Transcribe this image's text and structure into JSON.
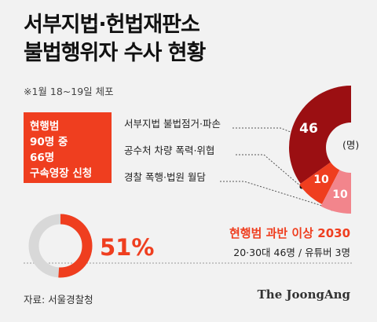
{
  "title_line1": "서부지법·헌법재판소",
  "title_line2": "불법행위자 수사 현황",
  "subtitle": "※1월 18~19일 체포",
  "box_lines": [
    "현행범",
    "90명 중",
    "66명",
    "구속영장 신청"
  ],
  "highlight_title": "현행범 과반 이상 2030",
  "highlight_detail": "20·30대 46명 / 유튜버 3명",
  "source": "자료: 서울경찰청",
  "brand": "The JoongAng",
  "colors": {
    "accent": "#ef3e1f",
    "dark_red": "#9b0f12",
    "pink": "#f2858c",
    "gray": "#d8d8d8"
  },
  "chart_data": [
    {
      "type": "pie",
      "unit": "(명)",
      "categories": [
        "서부지법 불법점거·파손",
        "공수처 차량 폭력·위협",
        "경찰 폭행·법원 월담"
      ],
      "values": [
        46,
        10,
        10
      ],
      "value_labels": [
        "46",
        "10",
        "10"
      ]
    },
    {
      "type": "pie",
      "values": [
        51,
        49
      ],
      "value_label": "51%"
    }
  ]
}
